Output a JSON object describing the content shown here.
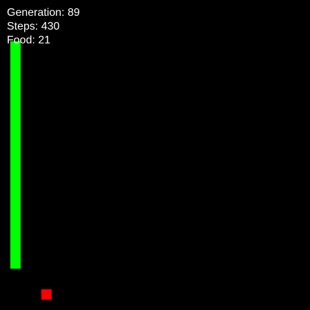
{
  "hud": {
    "generation_label": "Generation:",
    "generation_value": "89",
    "steps_label": "Steps:",
    "steps_value": "430",
    "food_label": "Food:",
    "food_value": "21"
  },
  "colors": {
    "background": "#000000",
    "snake": "#00ff00",
    "food": "#ff0000",
    "text": "#ffffff"
  }
}
